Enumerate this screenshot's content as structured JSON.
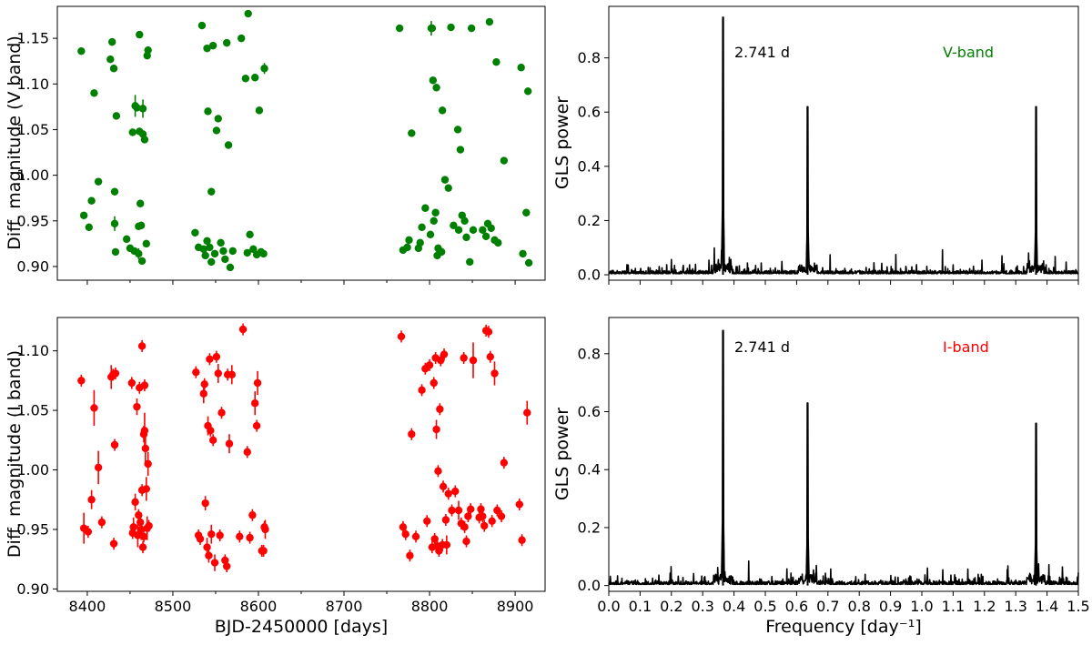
{
  "chart_data": [
    {
      "id": "v-mag",
      "type": "scatter",
      "title": "",
      "xlabel": "",
      "ylabel": "Diff. magnitude (V band)",
      "xlim": [
        8365,
        8935
      ],
      "ylim": [
        0.885,
        1.185
      ],
      "xticks": [
        8400,
        8500,
        8600,
        8700,
        8800,
        8900
      ],
      "xticklabels_visible": false,
      "yticks": [
        0.9,
        0.95,
        1.0,
        1.05,
        1.1,
        1.15
      ],
      "ytick_labels": [
        "0.90",
        "0.95",
        "1.00",
        "1.05",
        "1.10",
        "1.15"
      ],
      "color": "#008000",
      "grid": false,
      "series": [
        {
          "x": [
            8393,
            8396,
            8402,
            8405,
            8408,
            8413,
            8427,
            8429,
            8431,
            8432,
            8432,
            8433,
            8434,
            8446,
            8450,
            8453,
            8455,
            8456,
            8458,
            8460,
            8460,
            8461,
            8461,
            8462,
            8463,
            8464,
            8465,
            8465,
            8467,
            8469,
            8470,
            8471,
            8526,
            8530,
            8534,
            8536,
            8538,
            8540,
            8540,
            8541,
            8543,
            8545,
            8545,
            8547,
            8549,
            8551,
            8553,
            8556,
            8559,
            8561,
            8563,
            8565,
            8567,
            8570,
            8580,
            8585,
            8587,
            8588,
            8590,
            8594,
            8596,
            8598,
            8601,
            8603,
            8606,
            8607,
            8765,
            8769,
            8774,
            8776,
            8779,
            8787,
            8789,
            8791,
            8795,
            8801,
            8802,
            8803,
            8804,
            8805,
            8807,
            8808,
            8809,
            8810,
            8812,
            8814,
            8815,
            8818,
            8822,
            8825,
            8828,
            8833,
            8834,
            8836,
            8838,
            8841,
            8843,
            8847,
            8849,
            8851,
            8862,
            8866,
            8868,
            8870,
            8872,
            8876,
            8878,
            8880,
            8887,
            8907,
            8909,
            8913,
            8915,
            8916
          ],
          "y": [
            1.136,
            0.956,
            0.943,
            0.972,
            1.09,
            0.993,
            1.127,
            1.146,
            1.117,
            0.982,
            0.947,
            0.916,
            1.065,
            0.93,
            0.92,
            1.047,
            0.917,
            1.076,
            1.074,
            0.944,
            0.914,
            1.048,
            1.154,
            0.969,
            0.945,
            0.906,
            1.073,
            1.045,
            1.039,
            0.925,
            1.131,
            1.137,
            0.937,
            0.921,
            1.164,
            0.919,
            0.912,
            1.139,
            0.928,
            1.07,
            0.921,
            0.905,
            0.982,
            1.142,
            0.914,
            1.049,
            1.062,
            0.926,
            0.917,
            0.908,
            1.145,
            1.033,
            0.899,
            0.917,
            1.15,
            1.106,
            0.915,
            1.177,
            0.935,
            0.919,
            1.107,
            0.913,
            1.071,
            0.916,
            0.914,
            1.117,
            1.161,
            0.918,
            0.921,
            0.929,
            1.046,
            0.92,
            0.926,
            0.943,
            0.964,
            0.935,
            1.161,
            1.161,
            1.104,
            0.95,
            0.959,
            1.096,
            0.912,
            0.92,
            0.917,
            0.916,
            1.071,
            0.995,
            0.986,
            1.162,
            0.945,
            1.05,
            0.94,
            1.028,
            0.956,
            0.95,
            0.932,
            0.905,
            1.161,
            0.94,
            0.94,
            0.933,
            0.947,
            1.168,
            0.942,
            0.929,
            1.124,
            0.926,
            1.016,
            1.118,
            0.914,
            0.959,
            1.092,
            0.904
          ],
          "yerr": [
            0.004,
            0.004,
            0.004,
            0.004,
            0.004,
            0.004,
            0.004,
            0.004,
            0.004,
            0.004,
            0.008,
            0.004,
            0.004,
            0.004,
            0.004,
            0.004,
            0.004,
            0.012,
            0.004,
            0.004,
            0.006,
            0.004,
            0.004,
            0.004,
            0.004,
            0.004,
            0.01,
            0.004,
            0.004,
            0.004,
            0.004,
            0.004,
            0.004,
            0.004,
            0.004,
            0.004,
            0.004,
            0.004,
            0.004,
            0.004,
            0.004,
            0.004,
            0.004,
            0.004,
            0.004,
            0.004,
            0.004,
            0.004,
            0.004,
            0.004,
            0.004,
            0.004,
            0.004,
            0.004,
            0.004,
            0.004,
            0.004,
            0.004,
            0.004,
            0.004,
            0.004,
            0.004,
            0.004,
            0.004,
            0.004,
            0.006,
            0.004,
            0.004,
            0.004,
            0.004,
            0.004,
            0.004,
            0.004,
            0.004,
            0.004,
            0.004,
            0.008,
            0.004,
            0.004,
            0.004,
            0.004,
            0.004,
            0.004,
            0.004,
            0.004,
            0.004,
            0.004,
            0.004,
            0.004,
            0.004,
            0.004,
            0.004,
            0.004,
            0.004,
            0.004,
            0.004,
            0.004,
            0.004,
            0.004,
            0.004,
            0.004,
            0.004,
            0.004,
            0.004,
            0.004,
            0.004,
            0.004,
            0.004,
            0.004,
            0.004,
            0.004,
            0.004,
            0.004,
            0.004
          ]
        }
      ]
    },
    {
      "id": "v-gls",
      "type": "line",
      "title": "",
      "xlabel": "",
      "ylabel": "GLS power",
      "xlim": [
        0.0,
        1.5
      ],
      "ylim": [
        -0.02,
        0.99
      ],
      "xticks": [
        0.0,
        0.1,
        0.2,
        0.3,
        0.4,
        0.5,
        0.6,
        0.7,
        0.8,
        0.9,
        1.0,
        1.1,
        1.2,
        1.3,
        1.4,
        1.5
      ],
      "xticklabels_visible": false,
      "yticks": [
        0.0,
        0.2,
        0.4,
        0.6,
        0.8
      ],
      "ytick_labels": [
        "0.0",
        "0.2",
        "0.4",
        "0.6",
        "0.8"
      ],
      "color": "#000000",
      "grid": false,
      "annotation": "2.741 d",
      "band_label": "V-band",
      "band_color": "#008000",
      "peaks": [
        {
          "freq": 0.3648,
          "power": 0.95
        },
        {
          "freq": 0.6352,
          "power": 0.62
        },
        {
          "freq": 1.3648,
          "power": 0.62
        }
      ]
    },
    {
      "id": "i-mag",
      "type": "scatter",
      "title": "",
      "xlabel": "BJD-2450000 [days]",
      "ylabel": "Diff. magnitude (I band)",
      "xlim": [
        8365,
        8935
      ],
      "ylim": [
        0.898,
        1.128
      ],
      "xticks": [
        8400,
        8500,
        8600,
        8700,
        8800,
        8900
      ],
      "xtick_labels": [
        "8400",
        "8500",
        "8600",
        "8700",
        "8800",
        "8900"
      ],
      "yticks": [
        0.9,
        0.95,
        1.0,
        1.05,
        1.1
      ],
      "ytick_labels": [
        "0.90",
        "0.95",
        "1.00",
        "1.05",
        "1.10"
      ],
      "color": "#ff0000",
      "grid": false,
      "series": [
        {
          "x": [
            8393,
            8396,
            8401,
            8405,
            8408,
            8413,
            8417,
            8428,
            8430,
            8431,
            8432,
            8433,
            8452,
            8453,
            8454,
            8456,
            8458,
            8459,
            8460,
            8461,
            8462,
            8463,
            8464,
            8464,
            8465,
            8466,
            8466,
            8467,
            8467,
            8468,
            8469,
            8470,
            8471,
            8472,
            8527,
            8530,
            8532,
            8536,
            8537,
            8538,
            8540,
            8541,
            8542,
            8543,
            8544,
            8545,
            8547,
            8549,
            8551,
            8553,
            8555,
            8557,
            8561,
            8563,
            8564,
            8566,
            8569,
            8578,
            8582,
            8587,
            8590,
            8593,
            8596,
            8598,
            8599,
            8604,
            8606,
            8607,
            8608,
            8767,
            8769,
            8772,
            8777,
            8779,
            8784,
            8791,
            8795,
            8797,
            8800,
            8803,
            8805,
            8806,
            8807,
            8808,
            8809,
            8810,
            8811,
            8812,
            8813,
            8815,
            8816,
            8817,
            8819,
            8820,
            8822,
            8826,
            8830,
            8834,
            8837,
            8840,
            8841,
            8843,
            8845,
            8848,
            8851,
            8858,
            8860,
            8862,
            8864,
            8866,
            8869,
            8871,
            8873,
            8876,
            8879,
            8884,
            8887,
            8905,
            8908,
            8914
          ],
          "y": [
            1.075,
            0.951,
            0.948,
            0.975,
            1.052,
            1.002,
            0.956,
            1.078,
            1.08,
            0.938,
            1.021,
            1.081,
            1.073,
            0.947,
            0.952,
            0.973,
            1.053,
            0.945,
            0.962,
            1.069,
            0.956,
            0.95,
            1.104,
            0.983,
            0.935,
            0.944,
            1.03,
            1.071,
            1.033,
            1.018,
            0.984,
            0.951,
            1.005,
            0.953,
            1.082,
            0.945,
            0.942,
            1.064,
            1.072,
            0.972,
            0.935,
            1.037,
            0.928,
            1.093,
            1.033,
            0.946,
            1.025,
            0.922,
            1.095,
            1.081,
            0.945,
            1.048,
            0.924,
            0.919,
            1.08,
            1.022,
            1.08,
            0.944,
            1.118,
            1.015,
            0.943,
            0.962,
            1.056,
            1.037,
            1.073,
            0.932,
            0.932,
            0.952,
            0.95,
            1.112,
            0.952,
            0.946,
            0.928,
            1.03,
            0.944,
            1.067,
            1.085,
            0.957,
            1.088,
            0.935,
            1.073,
            0.942,
            1.094,
            1.034,
            0.936,
            0.999,
            0.932,
            1.051,
            1.092,
            0.937,
            0.986,
            1.097,
            0.958,
            0.937,
            0.98,
            0.966,
            0.982,
            0.966,
            0.955,
            1.094,
            0.952,
            0.94,
            0.961,
            0.967,
            1.092,
            0.96,
            0.967,
            0.961,
            0.953,
            1.117,
            1.116,
            1.095,
            0.957,
            1.081,
            0.966,
            0.961,
            1.006,
            0.971,
            0.941,
            1.048
          ],
          "yerr": [
            0.005,
            0.013,
            0.005,
            0.008,
            0.015,
            0.014,
            0.005,
            0.01,
            0.005,
            0.005,
            0.005,
            0.005,
            0.005,
            0.005,
            0.008,
            0.007,
            0.007,
            0.01,
            0.005,
            0.005,
            0.005,
            0.009,
            0.005,
            0.005,
            0.005,
            0.005,
            0.007,
            0.005,
            0.015,
            0.012,
            0.01,
            0.01,
            0.01,
            0.005,
            0.005,
            0.005,
            0.005,
            0.008,
            0.005,
            0.006,
            0.008,
            0.008,
            0.006,
            0.005,
            0.005,
            0.008,
            0.005,
            0.007,
            0.005,
            0.008,
            0.005,
            0.005,
            0.005,
            0.005,
            0.005,
            0.008,
            0.008,
            0.005,
            0.005,
            0.005,
            0.005,
            0.005,
            0.01,
            0.005,
            0.01,
            0.005,
            0.005,
            0.005,
            0.008,
            0.005,
            0.005,
            0.005,
            0.005,
            0.005,
            0.005,
            0.005,
            0.005,
            0.005,
            0.005,
            0.005,
            0.005,
            0.005,
            0.005,
            0.008,
            0.005,
            0.005,
            0.005,
            0.005,
            0.005,
            0.005,
            0.005,
            0.005,
            0.005,
            0.008,
            0.005,
            0.005,
            0.005,
            0.008,
            0.005,
            0.005,
            0.005,
            0.005,
            0.005,
            0.005,
            0.015,
            0.005,
            0.005,
            0.005,
            0.005,
            0.005,
            0.005,
            0.005,
            0.005,
            0.01,
            0.005,
            0.005,
            0.005,
            0.005,
            0.005,
            0.01
          ]
        }
      ]
    },
    {
      "id": "i-gls",
      "type": "line",
      "title": "",
      "xlabel": "Frequency [day⁻¹]",
      "ylabel": "GLS power",
      "xlim": [
        0.0,
        1.5
      ],
      "ylim": [
        -0.02,
        0.925
      ],
      "xticks": [
        0.0,
        0.1,
        0.2,
        0.3,
        0.4,
        0.5,
        0.6,
        0.7,
        0.8,
        0.9,
        1.0,
        1.1,
        1.2,
        1.3,
        1.4,
        1.5
      ],
      "xtick_labels": [
        "0.0",
        "0.1",
        "0.2",
        "0.3",
        "0.4",
        "0.5",
        "0.6",
        "0.7",
        "0.8",
        "0.9",
        "1.0",
        "1.1",
        "1.2",
        "1.3",
        "1.4",
        "1.5"
      ],
      "yticks": [
        0.0,
        0.2,
        0.4,
        0.6,
        0.8
      ],
      "ytick_labels": [
        "0.0",
        "0.2",
        "0.4",
        "0.6",
        "0.8"
      ],
      "color": "#000000",
      "grid": false,
      "annotation": "2.741 d",
      "band_label": "I-band",
      "band_color": "#ff0000",
      "peaks": [
        {
          "freq": 0.3648,
          "power": 0.88
        },
        {
          "freq": 0.6352,
          "power": 0.63
        },
        {
          "freq": 1.3648,
          "power": 0.56
        }
      ]
    }
  ]
}
